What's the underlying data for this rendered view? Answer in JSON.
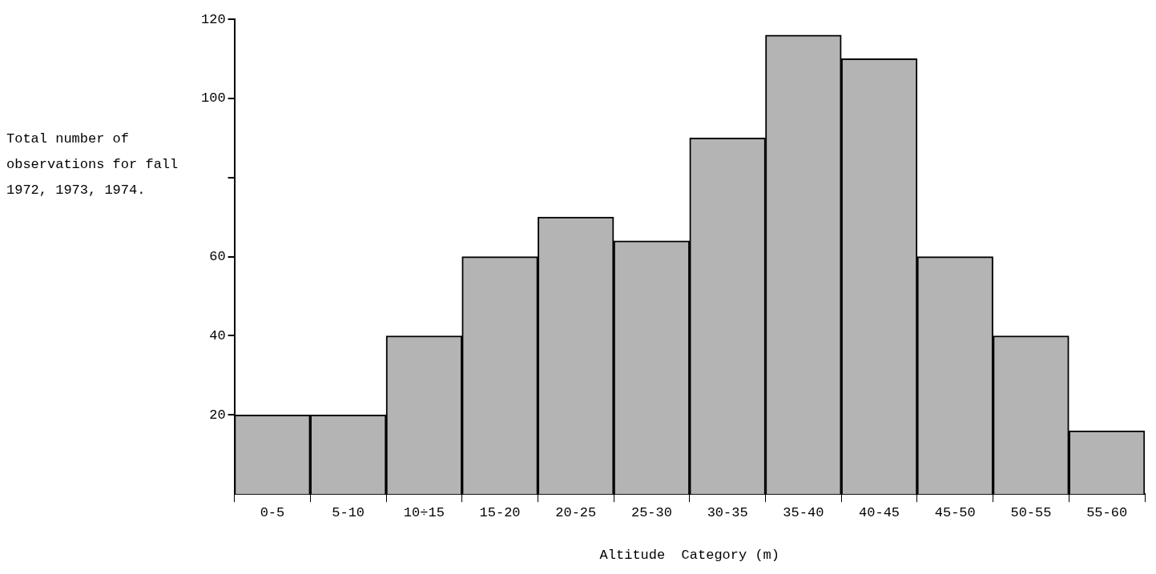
{
  "chart_data": {
    "type": "bar",
    "xlabel": "Altitude  Category (m)",
    "ylabel": "Total number of observations for fall 1972, 1973, 1974.",
    "categories": [
      "0-5",
      "5-10",
      "10÷15",
      "15-20",
      "20-25",
      "25-30",
      "30-35",
      "35-40",
      "40-45",
      "45-50",
      "50-55",
      "55-60"
    ],
    "values": [
      20,
      20,
      40,
      60,
      70,
      64,
      90,
      116,
      110,
      60,
      40,
      16
    ],
    "color": "#b4b4b4",
    "ylim": [
      0,
      120
    ],
    "yticks": [
      20,
      40,
      60,
      {
        "value": 80,
        "label": null
      },
      100,
      120
    ],
    "grid": false,
    "legend": false
  }
}
